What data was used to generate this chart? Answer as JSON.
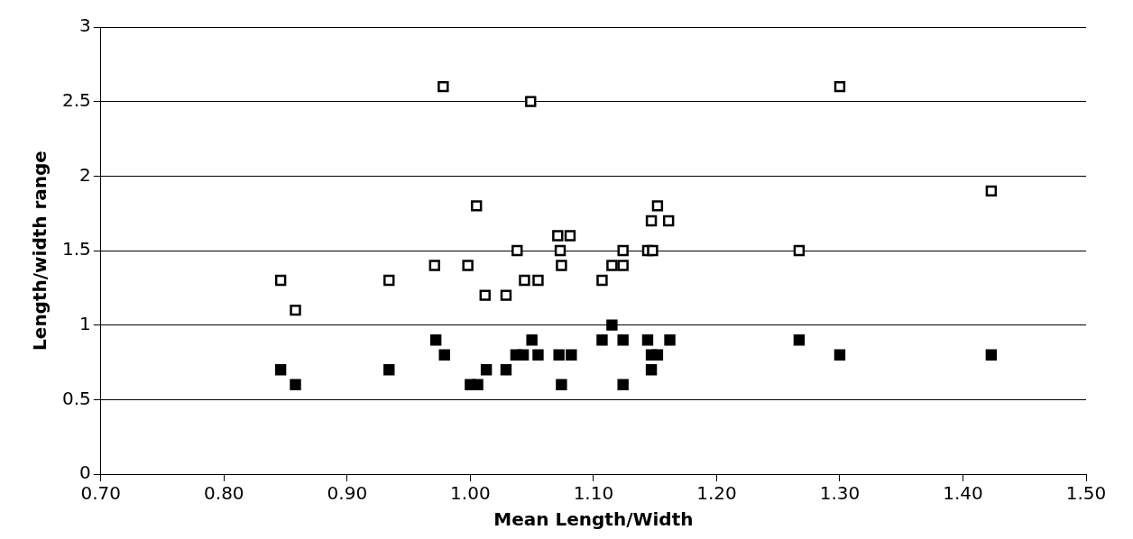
{
  "chart_data": {
    "type": "scatter",
    "xlabel": "Mean Length/Width",
    "ylabel": "Length/width range",
    "xlim": [
      0.7,
      1.5
    ],
    "ylim": [
      0,
      3
    ],
    "xticks": [
      {
        "value": 0.7,
        "label": "0.70"
      },
      {
        "value": 0.8,
        "label": "0.80"
      },
      {
        "value": 0.9,
        "label": "0.90"
      },
      {
        "value": 1.0,
        "label": "1.00"
      },
      {
        "value": 1.1,
        "label": "1.10"
      },
      {
        "value": 1.2,
        "label": "1.20"
      },
      {
        "value": 1.3,
        "label": "1.30"
      },
      {
        "value": 1.4,
        "label": "1.40"
      },
      {
        "value": 1.5,
        "label": "1.50"
      }
    ],
    "yticks": [
      0,
      0.5,
      1,
      1.5,
      2,
      2.5,
      3
    ],
    "grid": "y",
    "legend": false,
    "marker": "square",
    "series": [
      {
        "color": "#ffffff",
        "x": [
          0.846,
          0.858,
          0.934,
          0.971,
          0.978,
          0.998,
          1.005,
          1.012,
          1.029,
          1.038,
          1.044,
          1.049,
          1.055,
          1.071,
          1.073,
          1.074,
          1.081,
          1.107,
          1.115,
          1.124,
          1.124,
          1.144,
          1.148,
          1.147,
          1.152,
          1.161,
          1.267,
          1.3,
          1.423
        ],
        "values": [
          1.3,
          1.1,
          1.3,
          1.4,
          2.6,
          1.4,
          1.8,
          1.2,
          1.2,
          1.5,
          1.3,
          2.5,
          1.3,
          1.6,
          1.5,
          1.4,
          1.6,
          1.3,
          1.4,
          1.4,
          1.5,
          1.5,
          1.5,
          1.7,
          1.8,
          1.7,
          1.5,
          2.6,
          1.9
        ]
      },
      {
        "color": "#000000",
        "x": [
          0.846,
          0.858,
          0.934,
          0.972,
          0.979,
          1.0,
          1.006,
          1.013,
          1.029,
          1.037,
          1.043,
          1.05,
          1.055,
          1.072,
          1.074,
          1.082,
          1.107,
          1.115,
          1.124,
          1.124,
          1.144,
          1.147,
          1.147,
          1.152,
          1.162,
          1.267,
          1.3,
          1.423
        ],
        "values": [
          0.7,
          0.6,
          0.7,
          0.9,
          0.8,
          0.6,
          0.6,
          0.7,
          0.7,
          0.8,
          0.8,
          0.9,
          0.8,
          0.8,
          0.6,
          0.8,
          0.9,
          1.0,
          0.9,
          0.6,
          0.9,
          0.8,
          0.7,
          0.8,
          0.9,
          0.9,
          0.8,
          0.8
        ]
      }
    ]
  }
}
